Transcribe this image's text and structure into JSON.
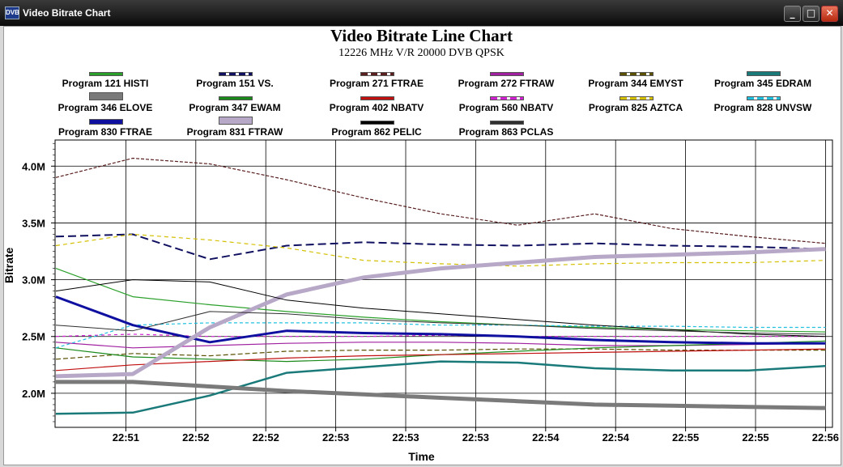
{
  "window": {
    "title": "Video Bitrate Chart",
    "minimize_label": "_",
    "maximize_label": "□",
    "close_label": "✕"
  },
  "chart_data": {
    "type": "line",
    "title": "Video Bitrate Line Chart",
    "subtitle": "12226 MHz V/R 20000 DVB QPSK",
    "xlabel": "Time",
    "ylabel": "Bitrate",
    "x_ticks": [
      "22:51",
      "22:52",
      "22:52",
      "22:53",
      "22:53",
      "22:53",
      "22:54",
      "22:54",
      "22:55",
      "22:55",
      "22:56"
    ],
    "y_ticks": [
      "2.0M",
      "2.5M",
      "3.0M",
      "3.5M",
      "4.0M"
    ],
    "y_tick_values": [
      2.0,
      2.5,
      3.0,
      3.5,
      4.0
    ],
    "ylim": [
      1.7,
      4.23
    ],
    "xlim": [
      0,
      11
    ],
    "grid": true,
    "legend_position": "top",
    "series": [
      {
        "name": "Program 121 HISTI",
        "color": "#2aa02a",
        "width": 1.2,
        "dash": "",
        "values": [
          3.1,
          2.85,
          2.78,
          2.72,
          2.67,
          2.63,
          2.6,
          2.58,
          2.56,
          2.55,
          2.54
        ]
      },
      {
        "name": "Program 151 VS.",
        "color": "#101060",
        "width": 2,
        "dash": "10,5",
        "values": [
          3.38,
          3.4,
          3.18,
          3.3,
          3.33,
          3.31,
          3.3,
          3.32,
          3.3,
          3.29,
          3.27
        ]
      },
      {
        "name": "Program 271 FTRAE",
        "color": "#5a2020",
        "width": 1.2,
        "dash": "4,2",
        "values": [
          3.9,
          4.07,
          4.02,
          3.88,
          3.72,
          3.58,
          3.48,
          3.58,
          3.45,
          3.38,
          3.32
        ]
      },
      {
        "name": "Program 272 FTRAW",
        "color": "#a020a0",
        "width": 1.2,
        "dash": "",
        "values": [
          2.45,
          2.4,
          2.42,
          2.44,
          2.45,
          2.45,
          2.44,
          2.42,
          2.42,
          2.43,
          2.44
        ]
      },
      {
        "name": "Program 344 EMYST",
        "color": "#5a5000",
        "width": 1.2,
        "dash": "6,3",
        "values": [
          2.3,
          2.35,
          2.33,
          2.37,
          2.38,
          2.38,
          2.39,
          2.39,
          2.38,
          2.38,
          2.38
        ]
      },
      {
        "name": "Program 345 EDRAM",
        "color": "#1a7a7a",
        "width": 2.5,
        "dash": "",
        "values": [
          1.82,
          1.83,
          1.98,
          2.18,
          2.23,
          2.28,
          2.27,
          2.22,
          2.2,
          2.2,
          2.24
        ]
      },
      {
        "name": "Program 346 ELOVE",
        "color": "#7a7a7a",
        "width": 5,
        "dash": "",
        "values": [
          2.1,
          2.1,
          2.06,
          2.02,
          1.99,
          1.96,
          1.93,
          1.9,
          1.89,
          1.88,
          1.87
        ]
      },
      {
        "name": "Program 347 EWAM",
        "color": "#1a8a1a",
        "width": 1.2,
        "dash": "",
        "values": [
          2.4,
          2.32,
          2.3,
          2.28,
          2.3,
          2.34,
          2.37,
          2.4,
          2.42,
          2.44,
          2.46
        ]
      },
      {
        "name": "Program 402 NBATV",
        "color": "#c01010",
        "width": 1.2,
        "dash": "",
        "values": [
          2.2,
          2.25,
          2.28,
          2.31,
          2.33,
          2.34,
          2.35,
          2.36,
          2.37,
          2.38,
          2.39
        ]
      },
      {
        "name": "Program 560 NBATV",
        "color": "#d020d0",
        "width": 1.2,
        "dash": "4,4",
        "values": [
          2.5,
          2.52,
          2.5,
          2.5,
          2.5,
          2.51,
          2.5,
          2.5,
          2.5,
          2.5,
          2.5
        ]
      },
      {
        "name": "Program 825 AZTCA",
        "color": "#d4c000",
        "width": 1.2,
        "dash": "5,4",
        "values": [
          3.3,
          3.4,
          3.35,
          3.28,
          3.17,
          3.14,
          3.12,
          3.14,
          3.15,
          3.15,
          3.17
        ]
      },
      {
        "name": "Program 828 UNVSW",
        "color": "#20c0e0",
        "width": 1.2,
        "dash": "4,3",
        "values": [
          2.4,
          2.6,
          2.62,
          2.62,
          2.62,
          2.6,
          2.6,
          2.59,
          2.59,
          2.58,
          2.58
        ]
      },
      {
        "name": "Program 830 FTRAE",
        "color": "#1010a0",
        "width": 3,
        "dash": "",
        "values": [
          2.85,
          2.6,
          2.45,
          2.55,
          2.53,
          2.52,
          2.5,
          2.47,
          2.45,
          2.44,
          2.44
        ]
      },
      {
        "name": "Program 831 FTRAW",
        "color": "#b8a8c8",
        "width": 5,
        "dash": "",
        "values": [
          2.15,
          2.17,
          2.58,
          2.87,
          3.02,
          3.1,
          3.15,
          3.2,
          3.22,
          3.24,
          3.27
        ]
      },
      {
        "name": "Program 862 PELIC",
        "color": "#000000",
        "width": 1,
        "dash": "",
        "values": [
          2.9,
          3.0,
          2.98,
          2.82,
          2.75,
          2.7,
          2.65,
          2.6,
          2.56,
          2.52,
          2.5
        ]
      },
      {
        "name": "Program 863 PCLAS",
        "color": "#303030",
        "width": 1,
        "dash": "",
        "values": [
          2.6,
          2.55,
          2.72,
          2.7,
          2.65,
          2.62,
          2.6,
          2.57,
          2.55,
          2.53,
          2.52
        ]
      }
    ]
  }
}
